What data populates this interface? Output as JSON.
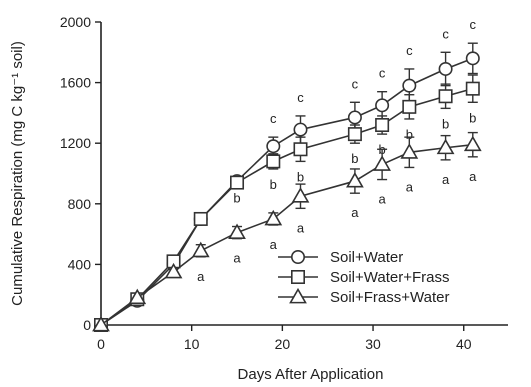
{
  "chart_data": {
    "type": "line",
    "title": "",
    "xlabel": "Days After Application",
    "ylabel": "Cumulative Respiration (mg C kg⁻¹ soil)",
    "xlim": [
      0,
      44
    ],
    "ylim": [
      0,
      2000
    ],
    "x_ticks": [
      0,
      10,
      20,
      30,
      40
    ],
    "y_ticks": [
      0,
      400,
      800,
      1200,
      1600,
      2000
    ],
    "grid": false,
    "legend_position": "bottom-right",
    "x": [
      0,
      4,
      8,
      11,
      15,
      19,
      22,
      28,
      31,
      34,
      38,
      41
    ],
    "series": [
      {
        "name": "Soil+Water",
        "marker": "circle",
        "values": [
          0,
          160,
          400,
          700,
          950,
          1180,
          1290,
          1370,
          1450,
          1580,
          1690,
          1760
        ],
        "errors": [
          0,
          0,
          0,
          0,
          0,
          60,
          90,
          100,
          90,
          110,
          110,
          100
        ],
        "labels": [
          "",
          "",
          "",
          "",
          "",
          "c",
          "c",
          "c",
          "c",
          "c",
          "c",
          "c"
        ]
      },
      {
        "name": "Soil+Water+Frass",
        "marker": "square",
        "values": [
          0,
          170,
          420,
          700,
          940,
          1080,
          1160,
          1260,
          1320,
          1440,
          1510,
          1560
        ],
        "errors": [
          0,
          0,
          0,
          0,
          0,
          50,
          80,
          60,
          60,
          80,
          80,
          90
        ],
        "labels": [
          "",
          "",
          "",
          "",
          "b",
          "b",
          "b",
          "b",
          "b",
          "b",
          "b",
          "b"
        ]
      },
      {
        "name": "Soil+Frass+Water",
        "marker": "triangle",
        "values": [
          0,
          180,
          350,
          490,
          610,
          700,
          850,
          950,
          1060,
          1140,
          1170,
          1190
        ],
        "errors": [
          0,
          0,
          0,
          40,
          40,
          40,
          80,
          80,
          100,
          100,
          80,
          80
        ],
        "labels": [
          "",
          "",
          "",
          "a",
          "a",
          "a",
          "a",
          "a",
          "a",
          "a",
          "a",
          "a"
        ]
      }
    ]
  }
}
